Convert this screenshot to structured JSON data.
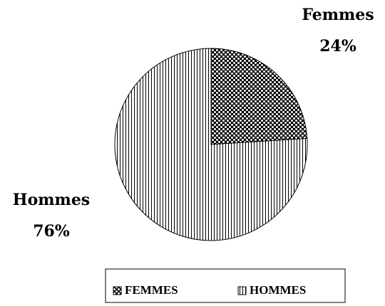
{
  "chart_data": {
    "type": "pie",
    "categories": [
      "Femmes",
      "Hommes"
    ],
    "values": [
      24,
      76
    ],
    "value_labels": [
      "24%",
      "76%"
    ],
    "patterns": [
      "dots",
      "vertical-stripes"
    ],
    "color": "#000000",
    "legend": {
      "position": "bottom",
      "labels": [
        "FEMMES",
        "HOMMES"
      ]
    }
  }
}
